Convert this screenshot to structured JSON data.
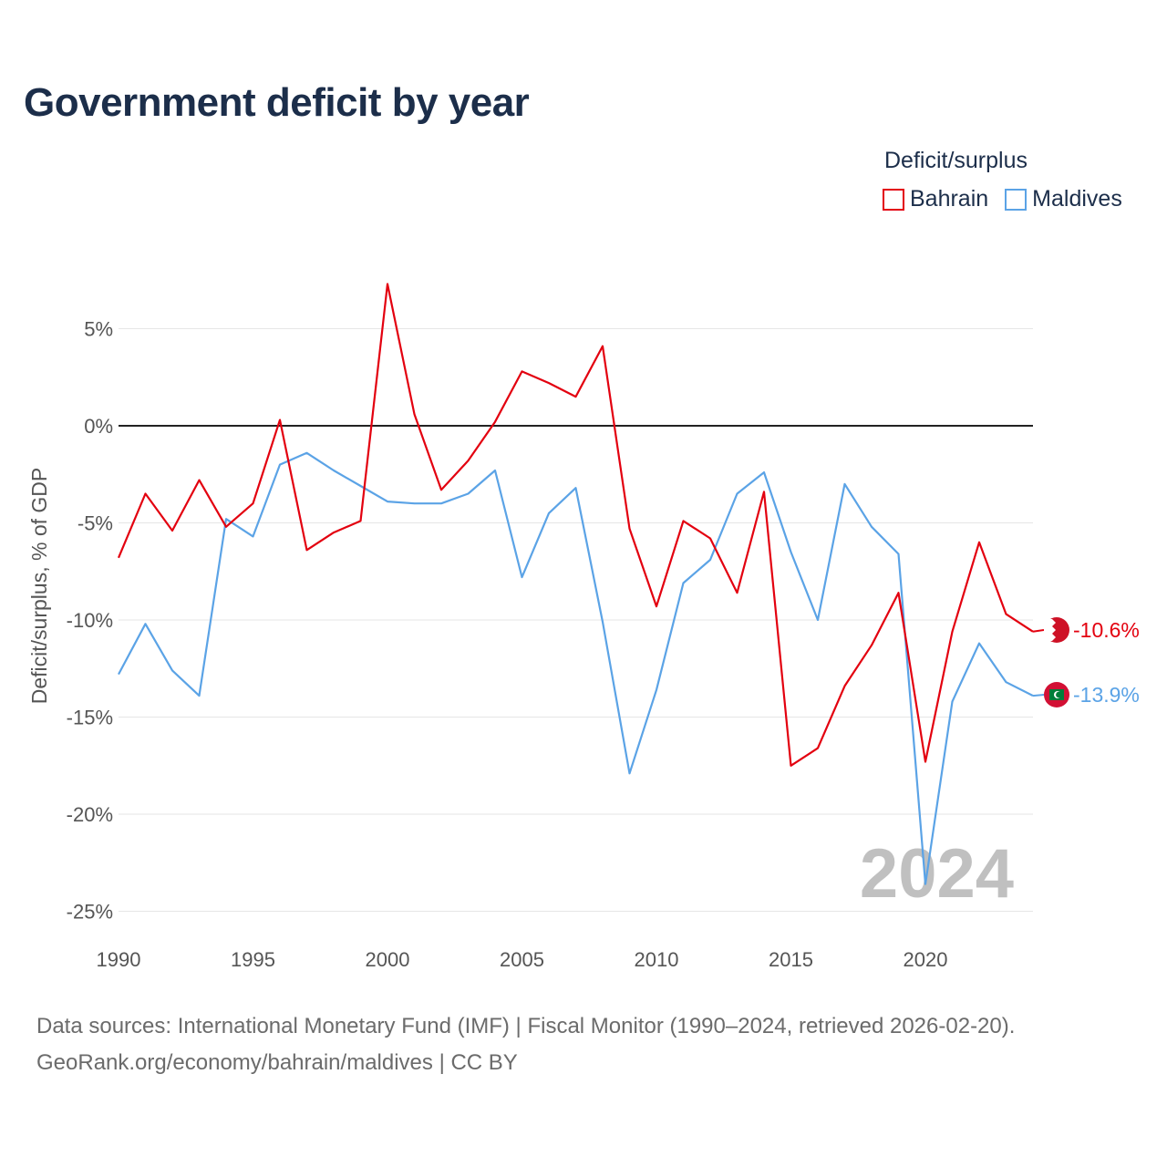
{
  "title": "Government deficit by year",
  "legend": {
    "title": "Deficit/surplus",
    "items": [
      {
        "name": "Bahrain",
        "color": "#e3000f"
      },
      {
        "name": "Maldives",
        "color": "#5ba3e6"
      }
    ]
  },
  "footer": {
    "line1": "Data sources: International Monetary Fund (IMF) | Fiscal Monitor (1990–2024, retrieved 2026-02-20).",
    "line2": "GeoRank.org/economy/bahrain/maldives | CC BY"
  },
  "chart_data": {
    "type": "line",
    "title": "Government deficit by year",
    "ylabel": "Deficit/surplus, % of GDP",
    "xlabel": "",
    "xlim": [
      1990,
      2024
    ],
    "ylim": [
      -25,
      5
    ],
    "x_ticks": [
      1990,
      1995,
      2000,
      2005,
      2010,
      2015,
      2020
    ],
    "x_tick_labels": [
      "1990",
      "1995",
      "2000",
      "2005",
      "2010",
      "2015",
      "2020"
    ],
    "y_ticks": [
      5,
      0,
      -5,
      -10,
      -15,
      -20,
      -25
    ],
    "y_tick_labels": [
      "5%",
      "0%",
      "-5%",
      "-10%",
      "-15%",
      "-20%",
      "-25%"
    ],
    "watermark": "2024",
    "x": [
      1990,
      1991,
      1992,
      1993,
      1994,
      1995,
      1996,
      1997,
      1998,
      1999,
      2000,
      2001,
      2002,
      2003,
      2004,
      2005,
      2006,
      2007,
      2008,
      2009,
      2010,
      2011,
      2012,
      2013,
      2014,
      2015,
      2016,
      2017,
      2018,
      2019,
      2020,
      2021,
      2022,
      2023,
      2024
    ],
    "series": [
      {
        "name": "Bahrain",
        "color": "#e3000f",
        "end_label": "-10.6%",
        "flag": "bahrain-flag-icon",
        "values": [
          -6.8,
          -3.5,
          -5.4,
          -2.8,
          -5.2,
          -4.0,
          0.3,
          -6.4,
          -5.5,
          -4.9,
          7.3,
          0.6,
          -3.3,
          -1.8,
          0.2,
          2.8,
          2.2,
          1.5,
          4.1,
          -5.3,
          -9.3,
          -4.9,
          -5.8,
          -8.6,
          -3.4,
          -17.5,
          -16.6,
          -13.4,
          -11.3,
          -8.6,
          -17.3,
          -10.6,
          -6.0,
          -9.7,
          -10.6
        ]
      },
      {
        "name": "Maldives",
        "color": "#5ba3e6",
        "end_label": "-13.9%",
        "flag": "maldives-flag-icon",
        "values": [
          -12.8,
          -10.2,
          -12.6,
          -13.9,
          -4.8,
          -5.7,
          -2.0,
          -1.4,
          -2.3,
          -3.1,
          -3.9,
          -4.0,
          -4.0,
          -3.5,
          -2.3,
          -7.8,
          -4.5,
          -3.2,
          -10.1,
          -17.9,
          -13.6,
          -8.1,
          -6.9,
          -3.5,
          -2.4,
          -6.5,
          -10.0,
          -3.0,
          -5.2,
          -6.6,
          -23.6,
          -14.2,
          -11.2,
          -13.2,
          -13.9
        ]
      }
    ]
  }
}
